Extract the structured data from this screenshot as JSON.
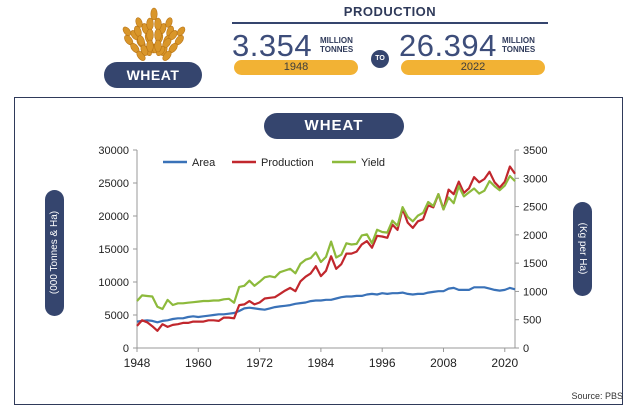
{
  "header": {
    "crop_label": "WHEAT",
    "production_title": "PRODUCTION",
    "from": {
      "value": "3.354",
      "unit_line1": "MILLION",
      "unit_line2": "TONNES",
      "year": "1948"
    },
    "connector": "TO",
    "to": {
      "value": "26.394",
      "unit_line1": "MILLION",
      "unit_line2": "TONNES",
      "year": "2022"
    }
  },
  "colors": {
    "navy": "#35456e",
    "gold": "#f2b234",
    "wheat": "#d9962a"
  },
  "chart_data": {
    "type": "line",
    "title": "WHEAT",
    "ylabel_left": "(000 Tonnes & Ha)",
    "ylabel_right": "(Kg per Ha)",
    "xlim": [
      1948,
      2022
    ],
    "ylim_left": [
      0,
      30000
    ],
    "ylim_right": [
      0,
      3500
    ],
    "x_ticks": [
      "1948",
      "1960",
      "1972",
      "1984",
      "1996",
      "2008",
      "2020"
    ],
    "y_ticks_left": [
      "0",
      "5000",
      "10000",
      "15000",
      "20000",
      "25000",
      "30000"
    ],
    "y_ticks_right": [
      "0",
      "500",
      "1000",
      "1500",
      "2000",
      "2500",
      "3000",
      "3500"
    ],
    "legend_position": "top",
    "x": [
      1948,
      1949,
      1950,
      1951,
      1952,
      1953,
      1954,
      1955,
      1956,
      1957,
      1958,
      1959,
      1960,
      1961,
      1962,
      1963,
      1964,
      1965,
      1966,
      1967,
      1968,
      1969,
      1970,
      1971,
      1972,
      1973,
      1974,
      1975,
      1976,
      1977,
      1978,
      1979,
      1980,
      1981,
      1982,
      1983,
      1984,
      1985,
      1986,
      1987,
      1988,
      1989,
      1990,
      1991,
      1992,
      1993,
      1994,
      1995,
      1996,
      1997,
      1998,
      1999,
      2000,
      2001,
      2002,
      2003,
      2004,
      2005,
      2006,
      2007,
      2008,
      2009,
      2010,
      2011,
      2012,
      2013,
      2014,
      2015,
      2016,
      2017,
      2018,
      2019,
      2020,
      2021,
      2022
    ],
    "series": [
      {
        "name": "Area",
        "axis": "left",
        "color": "#3a72b8",
        "values": [
          4000,
          4100,
          4200,
          4100,
          3900,
          4100,
          4200,
          4400,
          4500,
          4500,
          4700,
          4800,
          4700,
          4800,
          4900,
          5000,
          5100,
          5100,
          5200,
          5300,
          5600,
          6000,
          6100,
          6000,
          5900,
          5800,
          6000,
          6200,
          6300,
          6400,
          6500,
          6700,
          6800,
          6900,
          7100,
          7200,
          7200,
          7300,
          7300,
          7500,
          7700,
          7800,
          7800,
          7900,
          7900,
          8100,
          8200,
          8100,
          8300,
          8200,
          8300,
          8300,
          8400,
          8200,
          8100,
          8200,
          8200,
          8400,
          8500,
          8600,
          8600,
          9000,
          9100,
          8800,
          8800,
          8800,
          9200,
          9200,
          9200,
          9000,
          8800,
          8700,
          8800,
          9100,
          8900
        ]
      },
      {
        "name": "Production",
        "axis": "left",
        "color": "#c1272d",
        "values": [
          3354,
          4200,
          3900,
          3300,
          2600,
          3600,
          3200,
          3500,
          3600,
          3800,
          3800,
          4000,
          4000,
          4000,
          4200,
          4200,
          4100,
          4600,
          4600,
          4500,
          6500,
          6600,
          7100,
          6600,
          6900,
          7500,
          7600,
          7700,
          8200,
          8700,
          9100,
          8600,
          10100,
          10800,
          11300,
          12400,
          10900,
          11700,
          13900,
          12000,
          12700,
          14300,
          14300,
          14600,
          15700,
          16200,
          15200,
          17000,
          16900,
          16700,
          18700,
          17900,
          21100,
          19000,
          18200,
          19200,
          19500,
          21600,
          21300,
          23300,
          21000,
          24000,
          23300,
          25200,
          23500,
          24200,
          25900,
          25100,
          25600,
          26700,
          25100,
          24300,
          25200,
          27500,
          26394
        ]
      },
      {
        "name": "Yield",
        "axis": "right",
        "color": "#8dba3c",
        "values": [
          830,
          930,
          920,
          910,
          730,
          690,
          850,
          760,
          790,
          790,
          800,
          810,
          820,
          830,
          830,
          840,
          840,
          860,
          870,
          800,
          1080,
          1100,
          1190,
          1100,
          1170,
          1250,
          1270,
          1250,
          1340,
          1370,
          1400,
          1320,
          1490,
          1560,
          1590,
          1690,
          1520,
          1610,
          1880,
          1600,
          1650,
          1850,
          1830,
          1840,
          1990,
          2010,
          1850,
          2090,
          2050,
          2040,
          2250,
          2160,
          2490,
          2320,
          2240,
          2340,
          2390,
          2580,
          2510,
          2720,
          2450,
          2660,
          2560,
          2860,
          2680,
          2750,
          2820,
          2730,
          2780,
          2950,
          2860,
          2790,
          2870,
          3040,
          2950
        ]
      }
    ]
  },
  "source": "Source: PBS"
}
